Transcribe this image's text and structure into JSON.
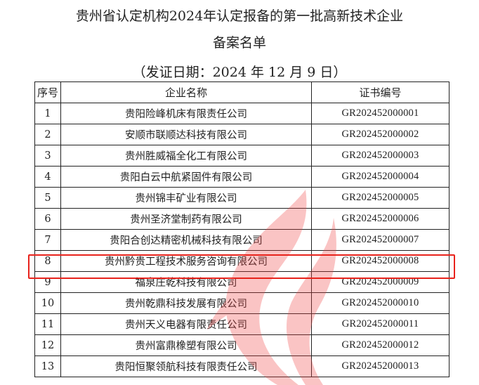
{
  "document": {
    "title_line1": "贵州省认定机构2024年认定报备的第一批高新技术企业",
    "title_line2": "备案名单",
    "issue_date": "（发证日期：2024 年 12 月 9 日）"
  },
  "table": {
    "headers": [
      "序号",
      "企业名称",
      "证书编号"
    ],
    "rows": [
      {
        "no": "1",
        "name": "贵阳险峰机床有限责任公司",
        "cert": "GR202452000001"
      },
      {
        "no": "2",
        "name": "安顺市联顺达科技有限公司",
        "cert": "GR202452000002"
      },
      {
        "no": "3",
        "name": "贵州胜威福全化工有限公司",
        "cert": "GR202452000003"
      },
      {
        "no": "4",
        "name": "贵阳白云中航紧固件有限公司",
        "cert": "GR202452000004"
      },
      {
        "no": "5",
        "name": "贵州锦丰矿业有限公司",
        "cert": "GR202452000005"
      },
      {
        "no": "6",
        "name": "贵州圣济堂制药有限公司",
        "cert": "GR202452000006"
      },
      {
        "no": "7",
        "name": "贵阳合创达精密机械科技有限公司",
        "cert": "GR202452000007"
      },
      {
        "no": "8",
        "name": "贵州黔贵工程技术服务咨询有限公司",
        "cert": "GR202452000008"
      },
      {
        "no": "9",
        "name": "福泉庄乾科技有限公司",
        "cert": "GR202452000009"
      },
      {
        "no": "10",
        "name": "贵州乾鼎科技发展有限公司",
        "cert": "GR202452000010"
      },
      {
        "no": "11",
        "name": "贵州天义电器有限责任公司",
        "cert": "GR202452000011"
      },
      {
        "no": "12",
        "name": "贵州富鼎橡塑有限公司",
        "cert": "GR202452000012"
      },
      {
        "no": "13",
        "name": "贵阳恒聚领航科技有限责任公司",
        "cert": "GR202452000013"
      }
    ],
    "highlighted_row": "8"
  },
  "colors": {
    "highlight": "#e8231c",
    "watermark": "#f04040"
  },
  "watermark_icon": "flame-logo-icon"
}
